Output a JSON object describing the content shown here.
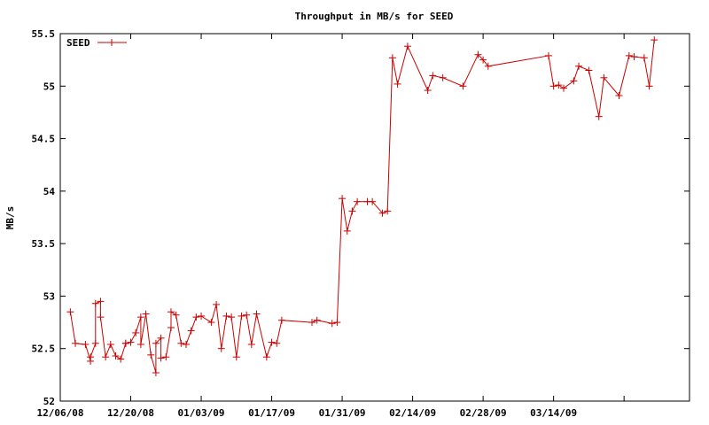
{
  "chart_data": {
    "type": "line",
    "title": "Throughput in MB/s for SEED",
    "xlabel": "",
    "ylabel": "MB/s",
    "legend_position": "top-left",
    "grid": false,
    "ylim": [
      52,
      55.5
    ],
    "xlim": [
      "2008-12-06",
      "2009-04-10"
    ],
    "yticks": [
      "52",
      "52.5",
      "53",
      "53.5",
      "54",
      "54.5",
      "55",
      "55.5"
    ],
    "xticks": [
      {
        "date": "2008-12-06",
        "label": "12/06/08"
      },
      {
        "date": "2008-12-20",
        "label": "12/20/08"
      },
      {
        "date": "2009-01-03",
        "label": "01/03/09"
      },
      {
        "date": "2009-01-17",
        "label": "01/17/09"
      },
      {
        "date": "2009-01-31",
        "label": "01/31/09"
      },
      {
        "date": "2009-02-14",
        "label": "02/14/09"
      },
      {
        "date": "2009-02-28",
        "label": "02/28/09"
      },
      {
        "date": "2009-03-14",
        "label": "03/14/09"
      },
      {
        "date": "2009-03-28",
        "label": ""
      },
      {
        "date": "2009-04-11",
        "label": ""
      }
    ],
    "series_color": "#cc0000",
    "series": [
      {
        "name": "SEED",
        "points": [
          [
            "2008-12-08",
            52.85
          ],
          [
            "2008-12-09",
            52.55
          ],
          [
            "2008-12-11",
            52.54
          ],
          [
            "2008-12-12",
            52.38
          ],
          [
            "2008-12-12",
            52.42
          ],
          [
            "2008-12-13",
            52.55
          ],
          [
            "2008-12-13",
            52.93
          ],
          [
            "2008-12-14",
            52.95
          ],
          [
            "2008-12-14",
            52.8
          ],
          [
            "2008-12-15",
            52.42
          ],
          [
            "2008-12-16",
            52.54
          ],
          [
            "2008-12-17",
            52.43
          ],
          [
            "2008-12-18",
            52.4
          ],
          [
            "2008-12-19",
            52.55
          ],
          [
            "2008-12-19",
            52.55
          ],
          [
            "2008-12-20",
            52.56
          ],
          [
            "2008-12-21",
            52.65
          ],
          [
            "2008-12-22",
            52.8
          ],
          [
            "2008-12-22",
            52.54
          ],
          [
            "2008-12-23",
            52.83
          ],
          [
            "2008-12-24",
            52.44
          ],
          [
            "2008-12-25",
            52.27
          ],
          [
            "2008-12-25",
            52.55
          ],
          [
            "2008-12-26",
            52.6
          ],
          [
            "2008-12-26",
            52.41
          ],
          [
            "2008-12-27",
            52.42
          ],
          [
            "2008-12-28",
            52.7
          ],
          [
            "2008-12-28",
            52.85
          ],
          [
            "2008-12-29",
            52.82
          ],
          [
            "2008-12-30",
            52.55
          ],
          [
            "2008-12-31",
            52.54
          ],
          [
            "2009-01-01",
            52.67
          ],
          [
            "2009-01-02",
            52.8
          ],
          [
            "2009-01-03",
            52.81
          ],
          [
            "2009-01-05",
            52.75
          ],
          [
            "2009-01-06",
            52.92
          ],
          [
            "2009-01-07",
            52.5
          ],
          [
            "2009-01-08",
            52.81
          ],
          [
            "2009-01-09",
            52.8
          ],
          [
            "2009-01-10",
            52.42
          ],
          [
            "2009-01-11",
            52.81
          ],
          [
            "2009-01-12",
            52.82
          ],
          [
            "2009-01-13",
            52.54
          ],
          [
            "2009-01-14",
            52.83
          ],
          [
            "2009-01-16",
            52.42
          ],
          [
            "2009-01-17",
            52.56
          ],
          [
            "2009-01-18",
            52.55
          ],
          [
            "2009-01-19",
            52.77
          ],
          [
            "2009-01-25",
            52.75
          ],
          [
            "2009-01-26",
            52.77
          ],
          [
            "2009-01-29",
            52.74
          ],
          [
            "2009-01-30",
            52.75
          ],
          [
            "2009-01-31",
            53.93
          ],
          [
            "2009-02-01",
            53.62
          ],
          [
            "2009-02-02",
            53.81
          ],
          [
            "2009-02-03",
            53.9
          ],
          [
            "2009-02-05",
            53.9
          ],
          [
            "2009-02-06",
            53.9
          ],
          [
            "2009-02-08",
            53.79
          ],
          [
            "2009-02-09",
            53.81
          ],
          [
            "2009-02-10",
            55.27
          ],
          [
            "2009-02-11",
            55.02
          ],
          [
            "2009-02-13",
            55.38
          ],
          [
            "2009-02-17",
            54.96
          ],
          [
            "2009-02-18",
            55.1
          ],
          [
            "2009-02-20",
            55.08
          ],
          [
            "2009-02-24",
            55.0
          ],
          [
            "2009-02-27",
            55.3
          ],
          [
            "2009-02-28",
            55.25
          ],
          [
            "2009-03-01",
            55.19
          ],
          [
            "2009-03-13",
            55.29
          ],
          [
            "2009-03-14",
            55.0
          ],
          [
            "2009-03-15",
            55.01
          ],
          [
            "2009-03-16",
            54.98
          ],
          [
            "2009-03-18",
            55.05
          ],
          [
            "2009-03-19",
            55.19
          ],
          [
            "2009-03-21",
            55.15
          ],
          [
            "2009-03-23",
            54.71
          ],
          [
            "2009-03-24",
            55.08
          ],
          [
            "2009-03-27",
            54.91
          ],
          [
            "2009-03-29",
            55.29
          ],
          [
            "2009-03-30",
            55.28
          ],
          [
            "2009-04-01",
            55.27
          ],
          [
            "2009-04-02",
            55.0
          ],
          [
            "2009-04-03",
            55.44
          ]
        ]
      }
    ]
  }
}
